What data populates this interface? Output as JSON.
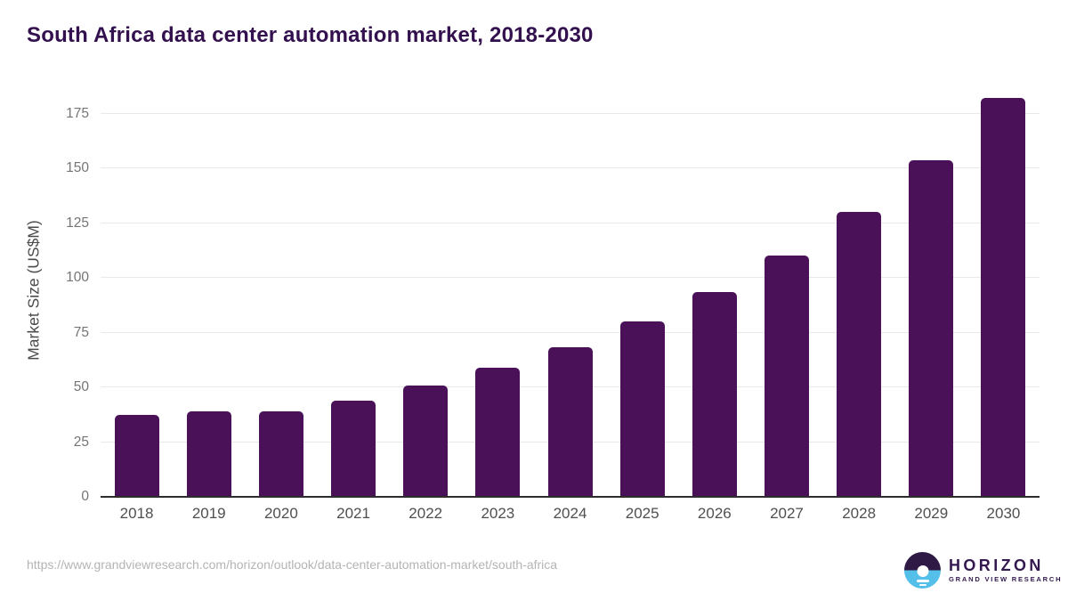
{
  "header": {
    "title": "South Africa data center automation market, 2018-2030"
  },
  "chart_data": {
    "type": "bar",
    "title": "South Africa data center automation market, 2018-2030",
    "categories": [
      "2018",
      "2019",
      "2020",
      "2021",
      "2022",
      "2023",
      "2024",
      "2025",
      "2026",
      "2027",
      "2028",
      "2029",
      "2030"
    ],
    "values": [
      37.5,
      39,
      39,
      44,
      51,
      59,
      68.5,
      80,
      93.5,
      110,
      130,
      153.5,
      182
    ],
    "xlabel": "",
    "ylabel": "Market Size (US$M)",
    "ylim": [
      0,
      187
    ],
    "yticks": [
      0,
      25,
      50,
      75,
      100,
      125,
      150,
      175
    ],
    "grid": "horizontal-only",
    "legend": "none",
    "bar_color": "#4a1158"
  },
  "footer": {
    "source_url": "https://www.grandviewresearch.com/horizon/outlook/data-center-automation-market/south-africa",
    "logo": {
      "brand": "HORIZON",
      "subtitle": "GRAND VIEW RESEARCH"
    }
  },
  "colors": {
    "background": "#ffffff",
    "title_text": "#33114e",
    "bar": "#4a1158",
    "axis_line": "#2d2d2d",
    "gridline": "#e9e9e9",
    "tick_label": "#757575",
    "x_label": "#4f4f4f",
    "y_axis_label": "#4c4c4c",
    "source_url_text": "#b4b4b4",
    "logo_dark_purple": "#2e1a45",
    "logo_light_blue": "#54bfe8",
    "logo_text": "#33194f"
  }
}
